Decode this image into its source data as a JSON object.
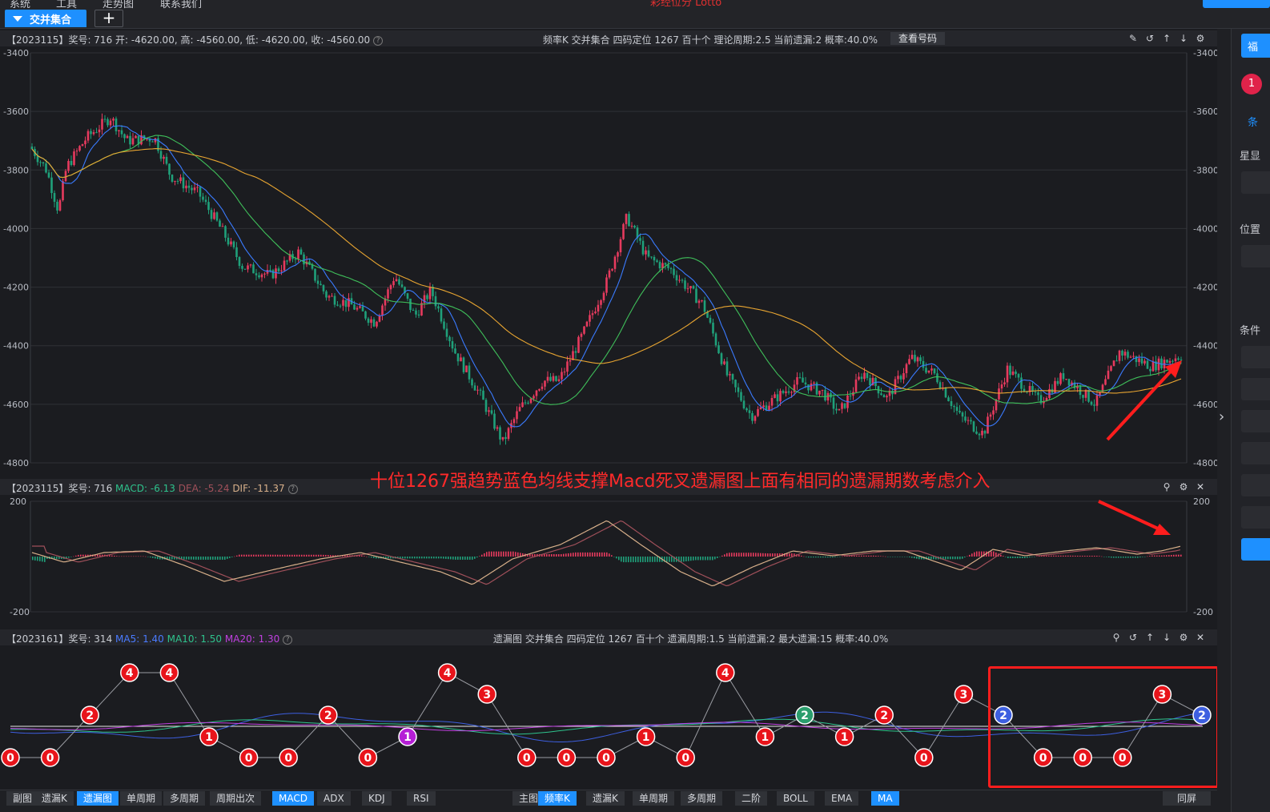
{
  "menu": [
    "系统",
    "工具",
    "走势图",
    "联系我们"
  ],
  "brand": "彩经位分 Lotto",
  "tab": {
    "active": "交并集合",
    "add": "+"
  },
  "kpanel": {
    "left": "【2023115】奖号: 716  开: -4620.00, 高: -4560.00, 低: -4620.00, 收: -4560.00",
    "mid": "频率K  交并集合  四码定位 1267  百十个  理论周期:2.5  当前遗漏:2  概率:40.0%",
    "button": "查看号码",
    "icons": [
      "edit-icon",
      "undo-icon",
      "up-icon",
      "down-icon",
      "settings-icon"
    ],
    "yticks": [
      "-3400",
      "-3600",
      "-3800",
      "-4000",
      "-4200",
      "-4400",
      "-4600",
      "-4800"
    ]
  },
  "macdpanel": {
    "prefix": "【2023115】奖号: 716 ",
    "macd": "MACD: -6.13",
    "dea": "DEA: -5.24",
    "dif": "DIF: -11.37",
    "yticks": [
      "200",
      "-200"
    ],
    "icons": [
      "pin-icon",
      "settings-icon",
      "close-icon"
    ]
  },
  "annotation": "十位1267强趋势蓝色均线支撑Macd死叉遗漏图上面有相同的遗漏期数考虑介入",
  "misspanel": {
    "prefix": "【2023161】奖号: 314 ",
    "ma5": "MA5: 1.40",
    "ma10": "MA10: 1.50",
    "ma20": "MA20: 1.30",
    "mid": "遗漏图  交并集合  四码定位 1267  百十个  遗漏周期:1.5  当前遗漏:2  最大遗漏:15  概率:40.0%",
    "icons": [
      "pin-icon",
      "undo-icon",
      "up-icon",
      "down-icon",
      "settings-icon",
      "close-icon"
    ],
    "points": [
      0,
      0,
      2,
      4,
      4,
      1,
      0,
      0,
      2,
      0,
      1,
      4,
      3,
      0,
      0,
      0,
      1,
      0,
      4,
      1,
      2,
      1,
      2,
      0,
      3,
      2,
      0,
      0,
      0,
      3,
      2
    ],
    "colors": {
      "0": "#e8141b",
      "1": "#e8141b",
      "2": "#e8141b",
      "3": "#e8141b",
      "4": "#e8141b"
    },
    "special": {
      "10": "#b51fd6",
      "20": "#2a9d6c",
      "25": "#3d5fe0",
      "30": "#3d5fe0"
    }
  },
  "bottom_left": [
    {
      "label": "副图",
      "on": false
    },
    {
      "label": "遗漏K",
      "on": false
    },
    {
      "label": "遗漏图",
      "on": true
    },
    {
      "label": "单周期",
      "on": false
    },
    {
      "label": "多周期",
      "on": false
    },
    {
      "label": "周期出次",
      "on": false
    },
    {
      "label": "MACD",
      "on": true
    },
    {
      "label": "ADX",
      "on": false
    },
    {
      "label": "KDJ",
      "on": false
    },
    {
      "label": "RSI",
      "on": false
    }
  ],
  "bottom_right": [
    {
      "label": "主图",
      "on": false
    },
    {
      "label": "频率K",
      "on": true
    },
    {
      "label": "遗漏K",
      "on": false
    },
    {
      "label": "单周期",
      "on": false
    },
    {
      "label": "多周期",
      "on": false
    },
    {
      "label": "二阶",
      "on": false
    },
    {
      "label": "BOLL",
      "on": false
    },
    {
      "label": "EMA",
      "on": false
    },
    {
      "label": "MA",
      "on": true
    },
    {
      "label": "同屏",
      "on": false
    }
  ],
  "sidebar": [
    "福",
    "1",
    "条",
    "星显",
    "位置",
    "条件"
  ]
}
